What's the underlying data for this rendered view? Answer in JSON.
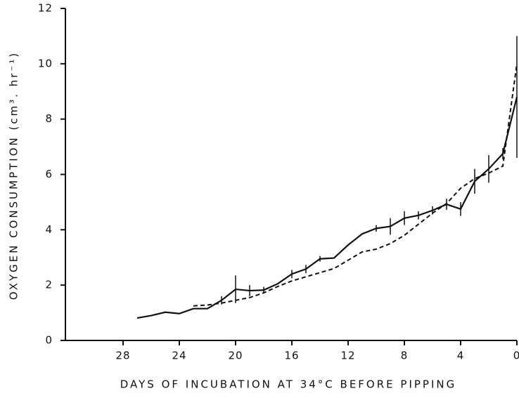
{
  "chart_data": {
    "type": "line",
    "xlabel": "DAYS OF INCUBATION AT 34°C BEFORE PIPPING",
    "ylabel": "OXYGEN CONSUMPTION (cm³. hr⁻¹)",
    "x": [
      27,
      26,
      25,
      24,
      23,
      22,
      21,
      20,
      19,
      18,
      17,
      16,
      15,
      14,
      13,
      12,
      11,
      10,
      9,
      8,
      7,
      6,
      5,
      4,
      3,
      2,
      1,
      0
    ],
    "series": [
      {
        "color": "#111111",
        "style": "solid",
        "values": [
          0.81,
          0.9,
          1.02,
          0.97,
          1.15,
          1.15,
          1.45,
          1.85,
          1.8,
          1.82,
          2.05,
          2.4,
          2.58,
          2.95,
          2.98,
          3.45,
          3.85,
          4.05,
          4.12,
          4.42,
          4.52,
          4.7,
          4.92,
          4.75,
          5.75,
          6.2,
          6.75,
          8.8
        ],
        "errors": [
          null,
          null,
          null,
          null,
          null,
          null,
          0.15,
          0.5,
          0.2,
          0.12,
          null,
          0.15,
          0.15,
          0.1,
          null,
          null,
          null,
          0.12,
          0.3,
          0.25,
          0.15,
          0.15,
          0.2,
          0.25,
          0.45,
          0.5,
          0.2,
          2.2
        ]
      },
      {
        "color": "#111111",
        "style": "dashed",
        "values": [
          null,
          null,
          null,
          null,
          1.25,
          1.28,
          1.35,
          1.45,
          1.55,
          1.72,
          1.95,
          2.15,
          2.3,
          2.45,
          2.6,
          2.9,
          3.2,
          3.3,
          3.5,
          3.8,
          4.2,
          4.6,
          4.95,
          5.5,
          5.85,
          6.05,
          6.3,
          10.0
        ]
      }
    ],
    "xlim": [
      32.1,
      0
    ],
    "xticks": [
      28,
      24,
      20,
      16,
      12,
      8,
      4,
      0
    ],
    "ylim": [
      0,
      12
    ],
    "yticks": [
      0,
      2,
      4,
      6,
      8,
      10,
      12
    ],
    "grid": false
  }
}
